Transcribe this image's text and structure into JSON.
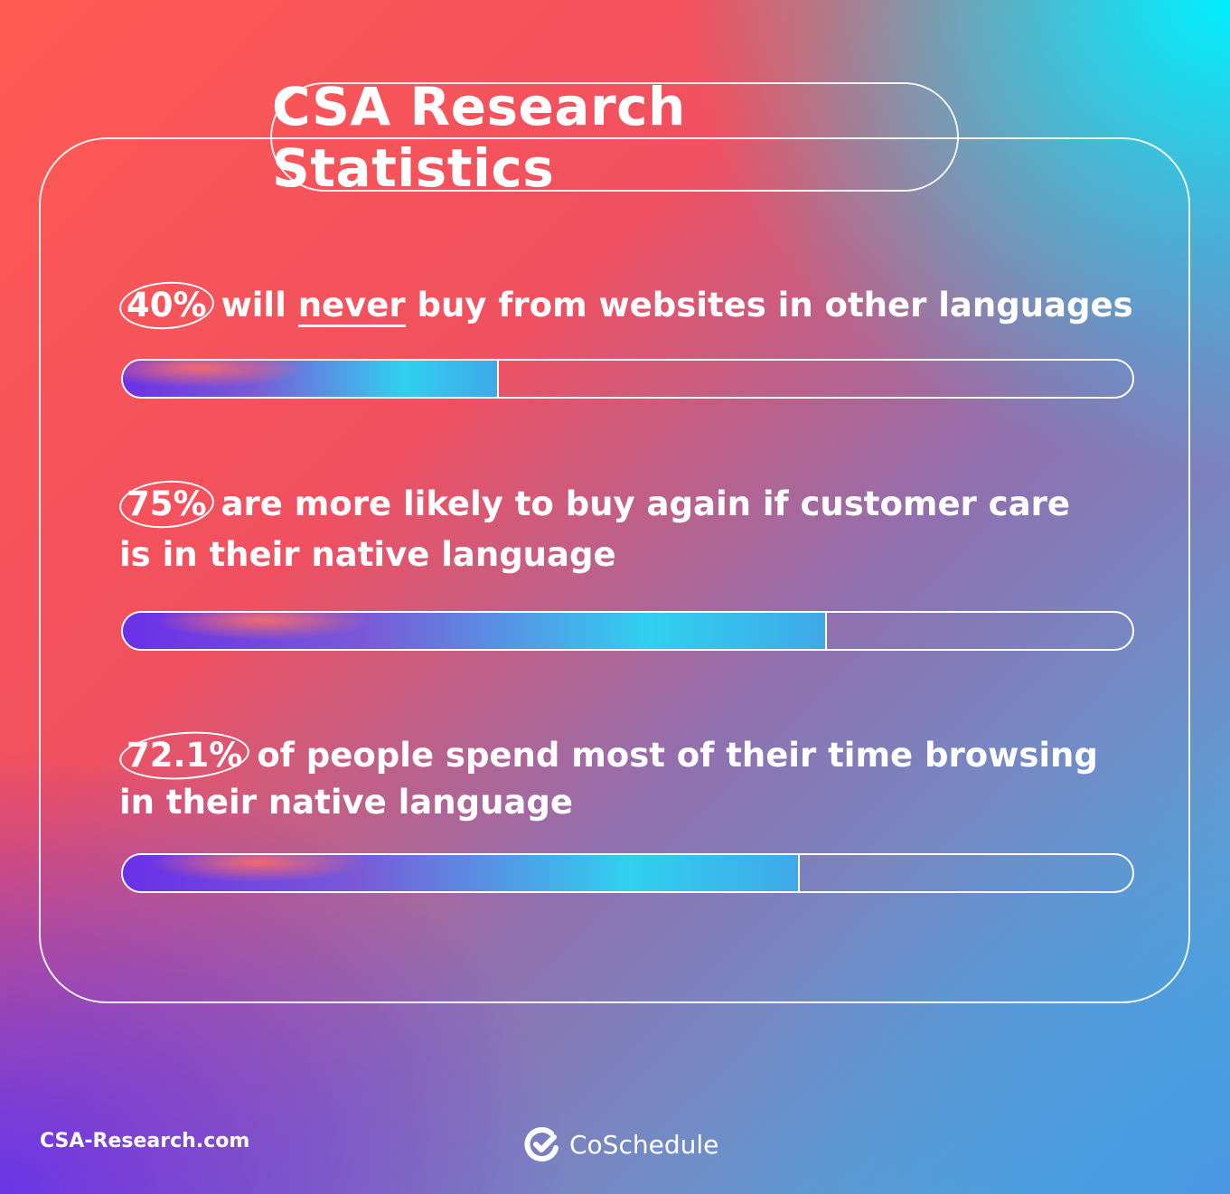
{
  "title": "CSA Research Statistics",
  "chart_data": {
    "type": "bar",
    "title": "CSA Research Statistics",
    "categories": [
      "will never buy from websites in other languages",
      "are more likely to buy again if customer care is in their native language",
      "of people spend most of their time browsing in their native language"
    ],
    "values": [
      40,
      75,
      72.1
    ],
    "ylim": [
      0,
      100
    ],
    "labels": [
      "40%",
      "75%",
      "72.1%"
    ]
  },
  "stats": [
    {
      "pct": "40%",
      "pre": "will ",
      "emph": "never",
      "post": " buy from websites in other languages",
      "line2": ""
    },
    {
      "pct": "75%",
      "pre": "are more likely to buy again if customer care",
      "emph": "",
      "post": "",
      "line2": "is in their native language"
    },
    {
      "pct": "72.1%",
      "pre": "of people spend most of their time browsing",
      "emph": "",
      "post": "",
      "line2": "in their native language"
    }
  ],
  "footer": {
    "source": "CSA-Research.com",
    "brand": "CoSchedule"
  }
}
